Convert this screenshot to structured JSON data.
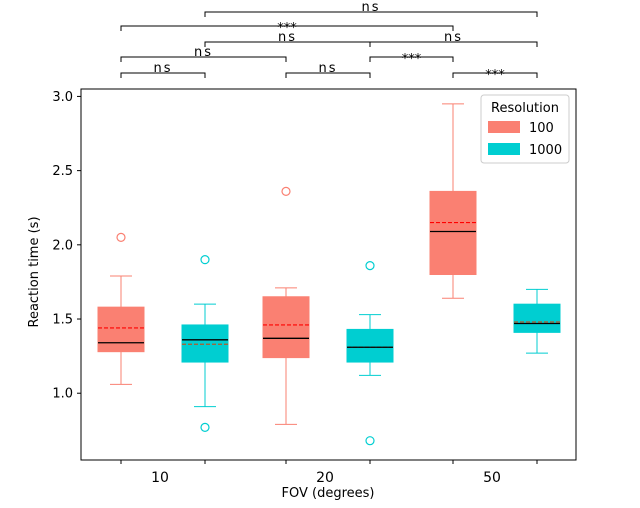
{
  "chart_data": {
    "type": "box",
    "title": "",
    "xlabel": "FOV (degrees)",
    "ylabel": "Reaction time (s)",
    "ylim": [
      0.55,
      3.05
    ],
    "yticks": [
      1.0,
      1.5,
      2.0,
      2.5,
      3.0
    ],
    "ytick_labels": [
      "1.0",
      "1.5",
      "2.0",
      "2.5",
      "3.0"
    ],
    "categories": [
      "10",
      "20",
      "50"
    ],
    "legend": {
      "title": "Resolution",
      "placement": "top-right",
      "entries": [
        {
          "label": "100",
          "color": "#fa8072"
        },
        {
          "label": "1000",
          "color": "#00ced1"
        }
      ]
    },
    "series": [
      {
        "name": "100",
        "color": "#fa8072",
        "boxes": [
          {
            "category": "10",
            "whislo": 1.06,
            "q1": 1.28,
            "med": 1.34,
            "mean": 1.44,
            "q3": 1.58,
            "whishi": 1.79,
            "fliers": [
              2.05
            ]
          },
          {
            "category": "20",
            "whislo": 0.79,
            "q1": 1.24,
            "med": 1.37,
            "mean": 1.46,
            "q3": 1.65,
            "whishi": 1.71,
            "fliers": [
              2.36
            ]
          },
          {
            "category": "50",
            "whislo": 1.64,
            "q1": 1.8,
            "med": 2.09,
            "mean": 2.15,
            "q3": 2.36,
            "whishi": 2.95,
            "fliers": []
          }
        ]
      },
      {
        "name": "1000",
        "color": "#00ced1",
        "boxes": [
          {
            "category": "10",
            "whislo": 0.91,
            "q1": 1.21,
            "med": 1.36,
            "mean": 1.33,
            "q3": 1.46,
            "whishi": 1.6,
            "fliers": [
              1.9,
              0.77
            ]
          },
          {
            "category": "20",
            "whislo": 1.12,
            "q1": 1.21,
            "med": 1.31,
            "mean": 1.31,
            "q3": 1.43,
            "whishi": 1.53,
            "fliers": [
              1.86,
              0.68
            ]
          },
          {
            "category": "50",
            "whislo": 1.27,
            "q1": 1.41,
            "med": 1.47,
            "mean": 1.48,
            "q3": 1.6,
            "whishi": 1.7,
            "fliers": []
          }
        ]
      }
    ],
    "significance": [
      {
        "from": "10-100",
        "to": "10-1000",
        "label": "ns"
      },
      {
        "from": "20-100",
        "to": "20-1000",
        "label": "ns"
      },
      {
        "from": "50-100",
        "to": "50-1000",
        "label": "***"
      },
      {
        "from": "10-100",
        "to": "20-100",
        "label": "ns"
      },
      {
        "from": "20-1000",
        "to": "50-100",
        "label": "***"
      },
      {
        "from": "10-1000",
        "to": "20-1000",
        "label": "ns"
      },
      {
        "from": "20-1000",
        "to": "50-1000",
        "label": "ns"
      },
      {
        "from": "10-100",
        "to": "50-100",
        "label": "***"
      },
      {
        "from": "10-1000",
        "to": "50-1000",
        "label": "ns"
      }
    ]
  }
}
